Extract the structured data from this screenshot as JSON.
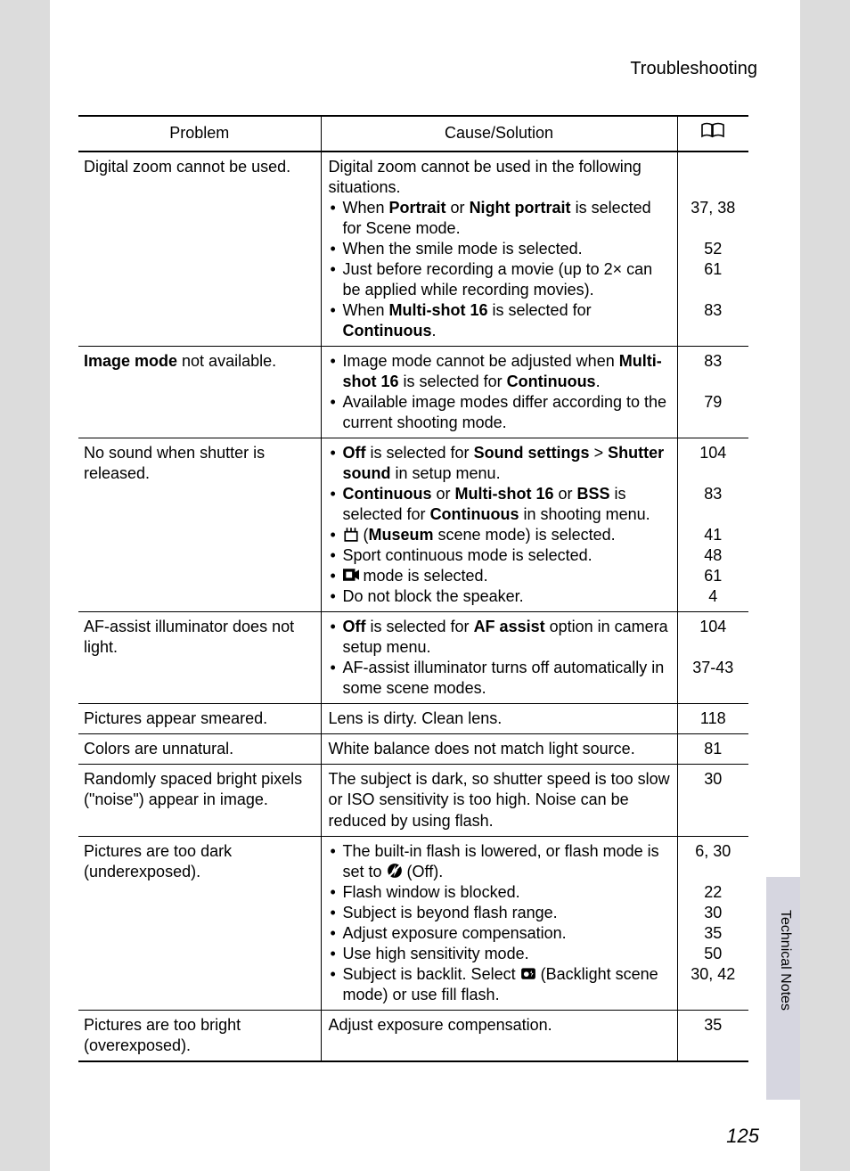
{
  "header": "Troubleshooting",
  "columns": {
    "problem": "Problem",
    "cause": "Cause/Solution",
    "page_icon": "📖"
  },
  "side_label": "Technical Notes",
  "page_number": "125",
  "rows": [
    {
      "problem_html": "Digital zoom cannot be used.",
      "cause": {
        "intro": "Digital zoom cannot be used in the following situations.",
        "bullets": [
          {
            "html": "When <span class=\"bold\">Portrait</span> or <span class=\"bold\">Night portrait</span> is selected for Scene mode."
          },
          {
            "html": "When the smile mode is selected."
          },
          {
            "html": "Just before recording a movie (up to 2× can be applied while recording movies)."
          },
          {
            "html": "When <span class=\"bold\">Multi-shot 16</span> is selected for <span class=\"bold\">Continuous</span>."
          }
        ]
      },
      "pages": [
        "",
        "",
        "37, 38",
        "",
        "52",
        "61",
        "",
        "83"
      ]
    },
    {
      "problem_html": "<span class=\"bold\">Image mode</span> not available.",
      "cause": {
        "bullets": [
          {
            "html": "Image mode cannot be adjusted when <span class=\"bold\">Multi-shot 16</span> is selected for <span class=\"bold\">Continuous</span>."
          },
          {
            "html": "Available image modes differ according to the current shooting mode."
          }
        ]
      },
      "pages": [
        "83",
        "",
        "79"
      ]
    },
    {
      "problem_html": "No sound when shutter is released.",
      "cause": {
        "bullets": [
          {
            "html": "<span class=\"bold\">Off</span> is selected for <span class=\"bold\">Sound settings</span> &gt; <span class=\"bold\">Shutter sound</span> in setup menu."
          },
          {
            "html": "<span class=\"bold\">Continuous</span> or <span class=\"bold\">Multi-shot 16</span> or <span class=\"bold\">BSS</span> is selected for <span class=\"bold\">Continuous</span> in shooting menu."
          },
          {
            "html": "<svg class=\"icon-inline\" viewBox=\"0 0 16 16\"><rect x=\"2\" y=\"6\" width=\"12\" height=\"9\" fill=\"none\" stroke=\"#000\" stroke-width=\"1.5\"/><path d=\"M4 6 V2 M8 6 V2 M12 6 V2\" stroke=\"#000\" stroke-width=\"1.5\"/></svg> (<span class=\"bold\">Museum</span> scene mode) is selected."
          },
          {
            "html": "Sport continuous mode is selected."
          },
          {
            "html": "<svg class=\"icon-inline\" viewBox=\"0 0 16 16\"><rect x=\"0\" y=\"2\" width=\"12\" height=\"12\" fill=\"#000\"/><rect x=\"3\" y=\"5\" width=\"6\" height=\"6\" fill=\"#fff\"/><path d=\"M11 6 L16 3 L16 13 L11 10 Z\" fill=\"#000\"/></svg> mode is selected."
          },
          {
            "html": "Do not block the speaker."
          }
        ]
      },
      "pages": [
        "104",
        "",
        "83",
        "",
        "41",
        "48",
        "61",
        "4"
      ]
    },
    {
      "problem_html": "AF-assist illuminator does not light.",
      "cause": {
        "bullets": [
          {
            "html": "<span class=\"bold\">Off</span> is selected for <span class=\"bold\">AF assist</span> option in camera setup menu."
          },
          {
            "html": "AF-assist illuminator turns off automatically in some scene modes."
          }
        ]
      },
      "pages": [
        "104",
        "",
        "37-43"
      ]
    },
    {
      "problem_html": "Pictures appear smeared.",
      "cause": {
        "plain": "Lens is dirty. Clean lens."
      },
      "pages": [
        "118"
      ]
    },
    {
      "problem_html": "Colors are unnatural.",
      "cause": {
        "plain": "White balance does not match light source."
      },
      "pages": [
        "81"
      ]
    },
    {
      "problem_html": "Randomly spaced bright pixels (\"noise\") appear in image.",
      "cause": {
        "plain": "The subject is dark, so shutter speed is too slow or ISO sensitivity is too high. Noise can be reduced by using flash."
      },
      "pages": [
        "30"
      ]
    },
    {
      "problem_html": "Pictures are too dark (underexposed).",
      "cause": {
        "bullets": [
          {
            "html": "The built-in flash is lowered, or flash mode is set to <svg class=\"icon-inline\" viewBox=\"0 0 16 16\"><circle cx=\"8\" cy=\"8\" r=\"7\" fill=\"#000\"/><path d=\"M9 2 L5 9 L8 9 L7 14 L11 7 L8 7 Z\" fill=\"#fff\"/><line x1=\"2\" y1=\"14\" x2=\"14\" y2=\"2\" stroke=\"#fff\" stroke-width=\"2\"/></svg> (Off)."
          },
          {
            "html": "Flash window is blocked."
          },
          {
            "html": "Subject is beyond flash range."
          },
          {
            "html": "Adjust exposure compensation."
          },
          {
            "html": "Use high sensitivity mode."
          },
          {
            "html": "Subject is backlit. Select <svg class=\"icon-inline\" viewBox=\"0 0 16 16\"><rect x=\"1\" y=\"3\" width=\"14\" height=\"11\" rx=\"2\" fill=\"#000\"/><circle cx=\"6\" cy=\"9\" r=\"2.5\" fill=\"#fff\"/><path d=\"M11 5 L10 8 L11.5 8 L10.5 12 L13 8 L11.5 8 Z\" fill=\"#fff\"/></svg> (Backlight scene mode) or use fill flash."
          }
        ]
      },
      "pages": [
        "6, 30",
        "",
        "22",
        "30",
        "35",
        "50",
        "30, 42"
      ]
    },
    {
      "problem_html": "Pictures are too bright (overexposed).",
      "cause": {
        "plain": "Adjust exposure compensation."
      },
      "pages": [
        "35"
      ]
    }
  ]
}
